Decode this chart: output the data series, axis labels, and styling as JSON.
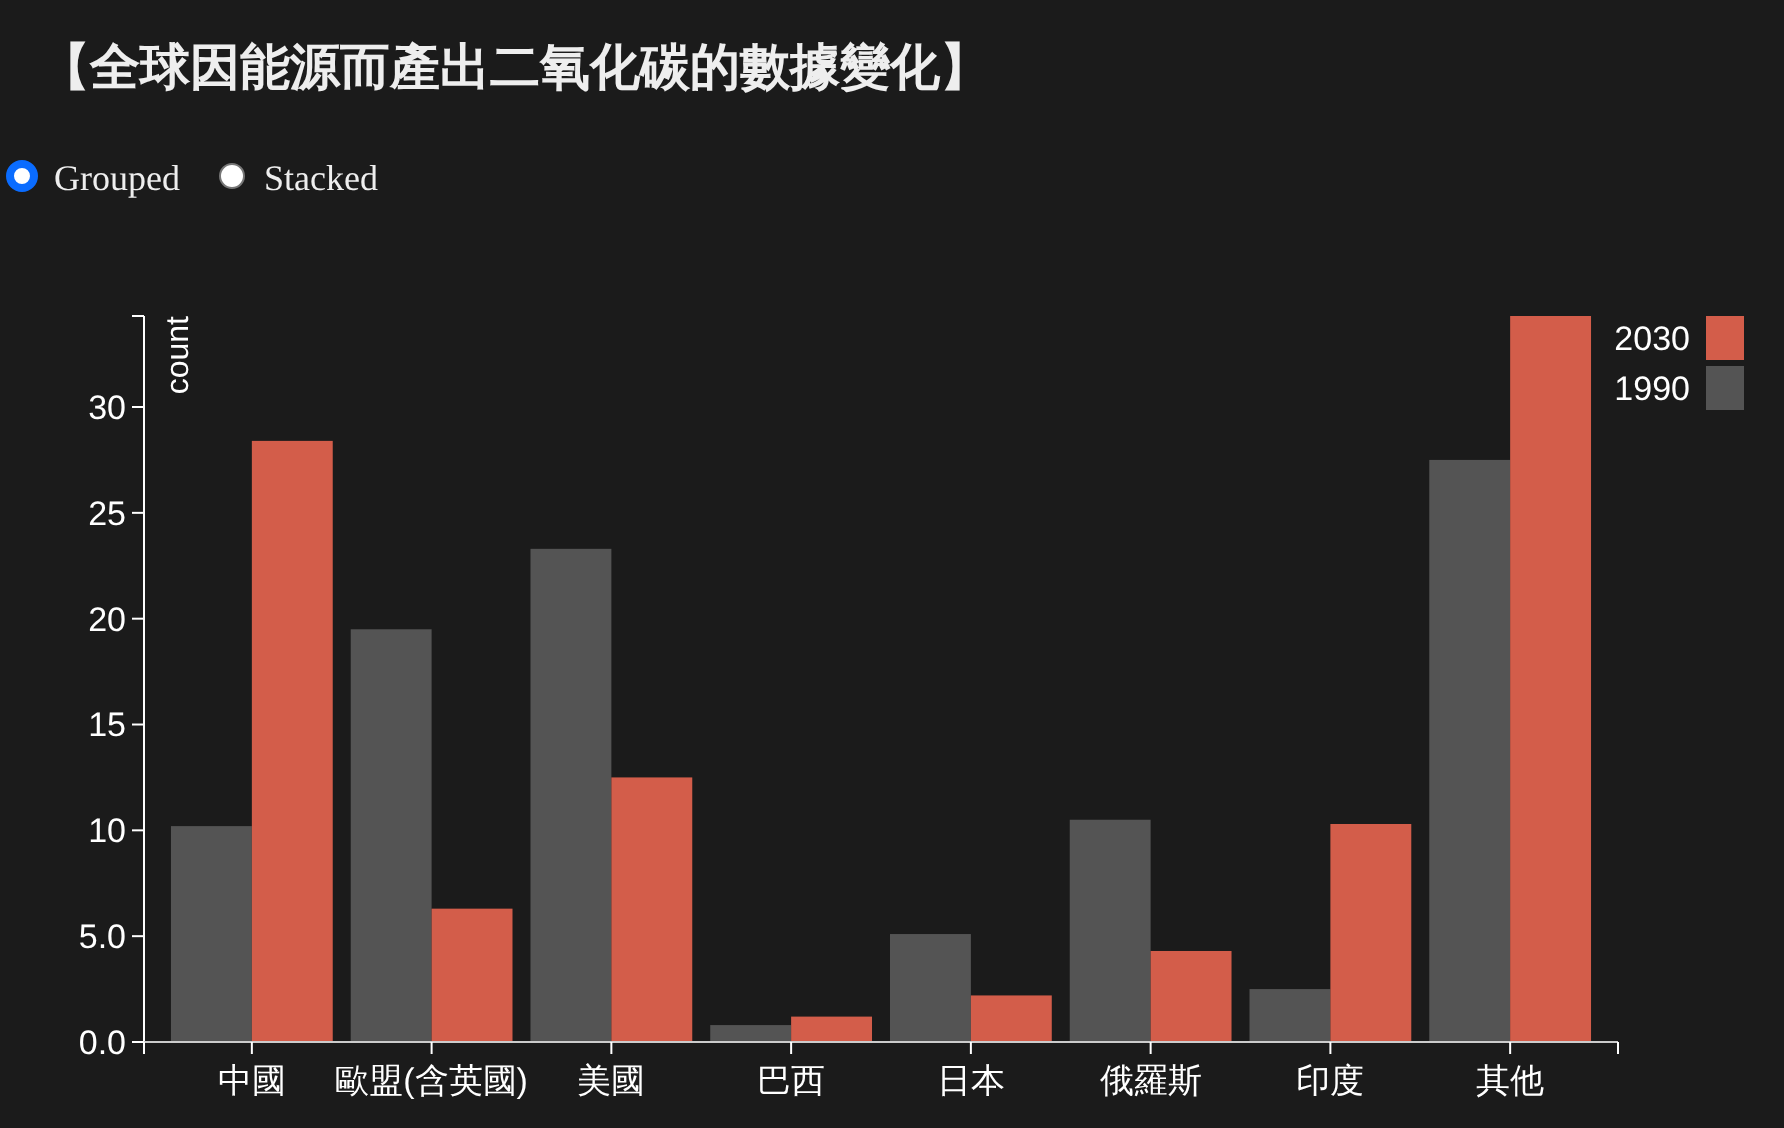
{
  "chart_data": {
    "type": "bar",
    "title": "【全球因能源而產出二氧化碳的數據變化】",
    "ylabel": "count",
    "annotations": [
      "Grouped",
      "Stacked"
    ],
    "categories": [
      "中國",
      "歐盟(含英國)",
      "美國",
      "巴西",
      "日本",
      "俄羅斯",
      "印度",
      "其他"
    ],
    "series": [
      {
        "name": "1990",
        "color": "#545454",
        "values": [
          10.2,
          19.5,
          23.3,
          0.8,
          5.1,
          10.5,
          2.5,
          27.5
        ]
      },
      {
        "name": "2030",
        "color": "#d35d4a",
        "values": [
          28.4,
          6.3,
          12.5,
          1.2,
          2.2,
          4.3,
          10.3,
          34.3
        ]
      }
    ],
    "ylim": [
      0,
      34.3
    ],
    "yticks": [
      {
        "value": 0,
        "label": "0.0"
      },
      {
        "value": 5,
        "label": "5.0"
      },
      10,
      15,
      20,
      25,
      30
    ],
    "legend": "top right"
  }
}
